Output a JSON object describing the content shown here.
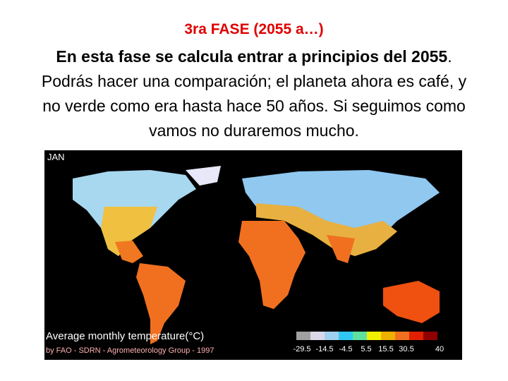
{
  "slide": {
    "title": "3ra FASE (2055 a…)",
    "paragraph": {
      "bold": "En esta fase se calcula entrar a principios del 2055",
      "rest": ". Podrás hacer una comparación; el planeta ahora es café, y no verde como era hasta hace 50 años. Si seguimos como vamos no duraremos mucho."
    },
    "map": {
      "month": "JAN",
      "caption": "Average monthly temperature(°C)",
      "credit": "by FAO - SDRN - Agrometeorology Group - 1997",
      "scale_labels": [
        "-29.5",
        "-14.5",
        "-4.5",
        "5.5",
        "15.5",
        "30.5",
        "40"
      ]
    }
  }
}
